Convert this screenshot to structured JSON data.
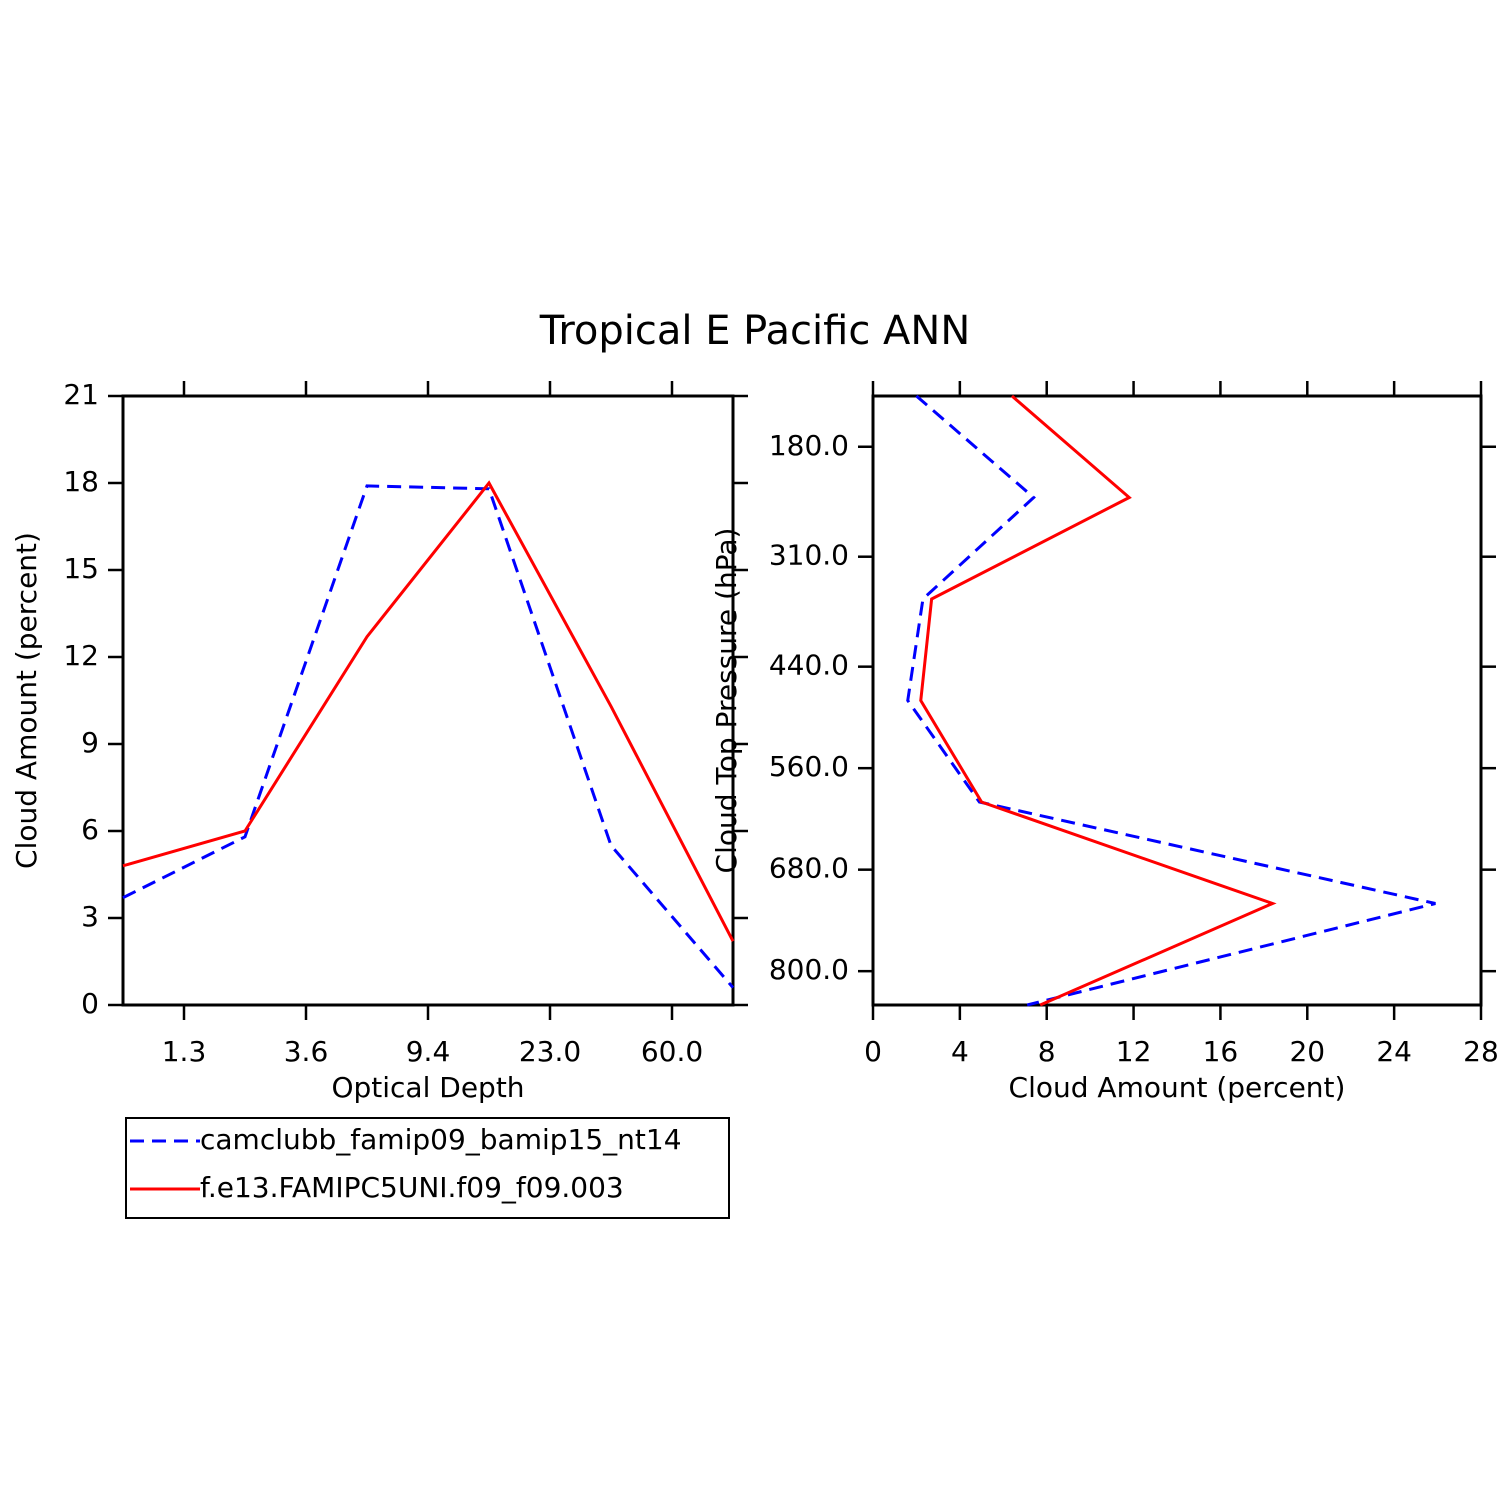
{
  "title": "Tropical E Pacific ANN",
  "chart_data": [
    {
      "type": "line",
      "xlabel": "Optical Depth",
      "ylabel": "Cloud Amount (percent)",
      "x": [
        0,
        1,
        2,
        3,
        4,
        5
      ],
      "xlim": [
        0,
        5
      ],
      "xticks": [
        {
          "value": 0.5,
          "label": "1.3"
        },
        {
          "value": 1.5,
          "label": "3.6"
        },
        {
          "value": 2.5,
          "label": "9.4"
        },
        {
          "value": 3.5,
          "label": "23.0"
        },
        {
          "value": 4.5,
          "label": "60.0"
        }
      ],
      "ylim": [
        0,
        21
      ],
      "yticks": [
        0,
        3,
        6,
        9,
        12,
        15,
        18,
        21
      ],
      "legend": "below",
      "series": [
        {
          "name": "camclubb_famip09_bamip15_nt14",
          "color": "#0000ff",
          "line_style": "dashed",
          "values": [
            3.7,
            5.8,
            17.9,
            17.8,
            5.5,
            0.6
          ]
        },
        {
          "name": "f.e13.FAMIPC5UNI.f09_f09.003",
          "color": "#ff0000",
          "line_style": "solid",
          "values": [
            4.8,
            6.0,
            12.7,
            18.0,
            10.3,
            2.2
          ]
        }
      ]
    },
    {
      "type": "profile",
      "xlabel": "Cloud Amount (percent)",
      "ylabel": "Cloud Top Pressure (hPa)",
      "y": [
        120,
        240,
        360,
        480,
        600,
        720,
        840
      ],
      "xlim": [
        0,
        28
      ],
      "xticks": [
        0,
        4,
        8,
        12,
        16,
        20,
        24,
        28
      ],
      "ylim": [
        840,
        120
      ],
      "yticks": [
        {
          "value": 180,
          "label": "180.0"
        },
        {
          "value": 310,
          "label": "310.0"
        },
        {
          "value": 440,
          "label": "440.0"
        },
        {
          "value": 560,
          "label": "560.0"
        },
        {
          "value": 680,
          "label": "680.0"
        },
        {
          "value": 800,
          "label": "800.0"
        }
      ],
      "series": [
        {
          "color": "#0000ff",
          "line_style": "dashed",
          "values": [
            2.0,
            7.4,
            2.3,
            1.6,
            4.9,
            25.9,
            7.1
          ]
        },
        {
          "color": "#ff0000",
          "line_style": "solid",
          "values": [
            6.4,
            11.8,
            2.7,
            2.2,
            5.0,
            18.4,
            7.7
          ]
        }
      ]
    }
  ]
}
